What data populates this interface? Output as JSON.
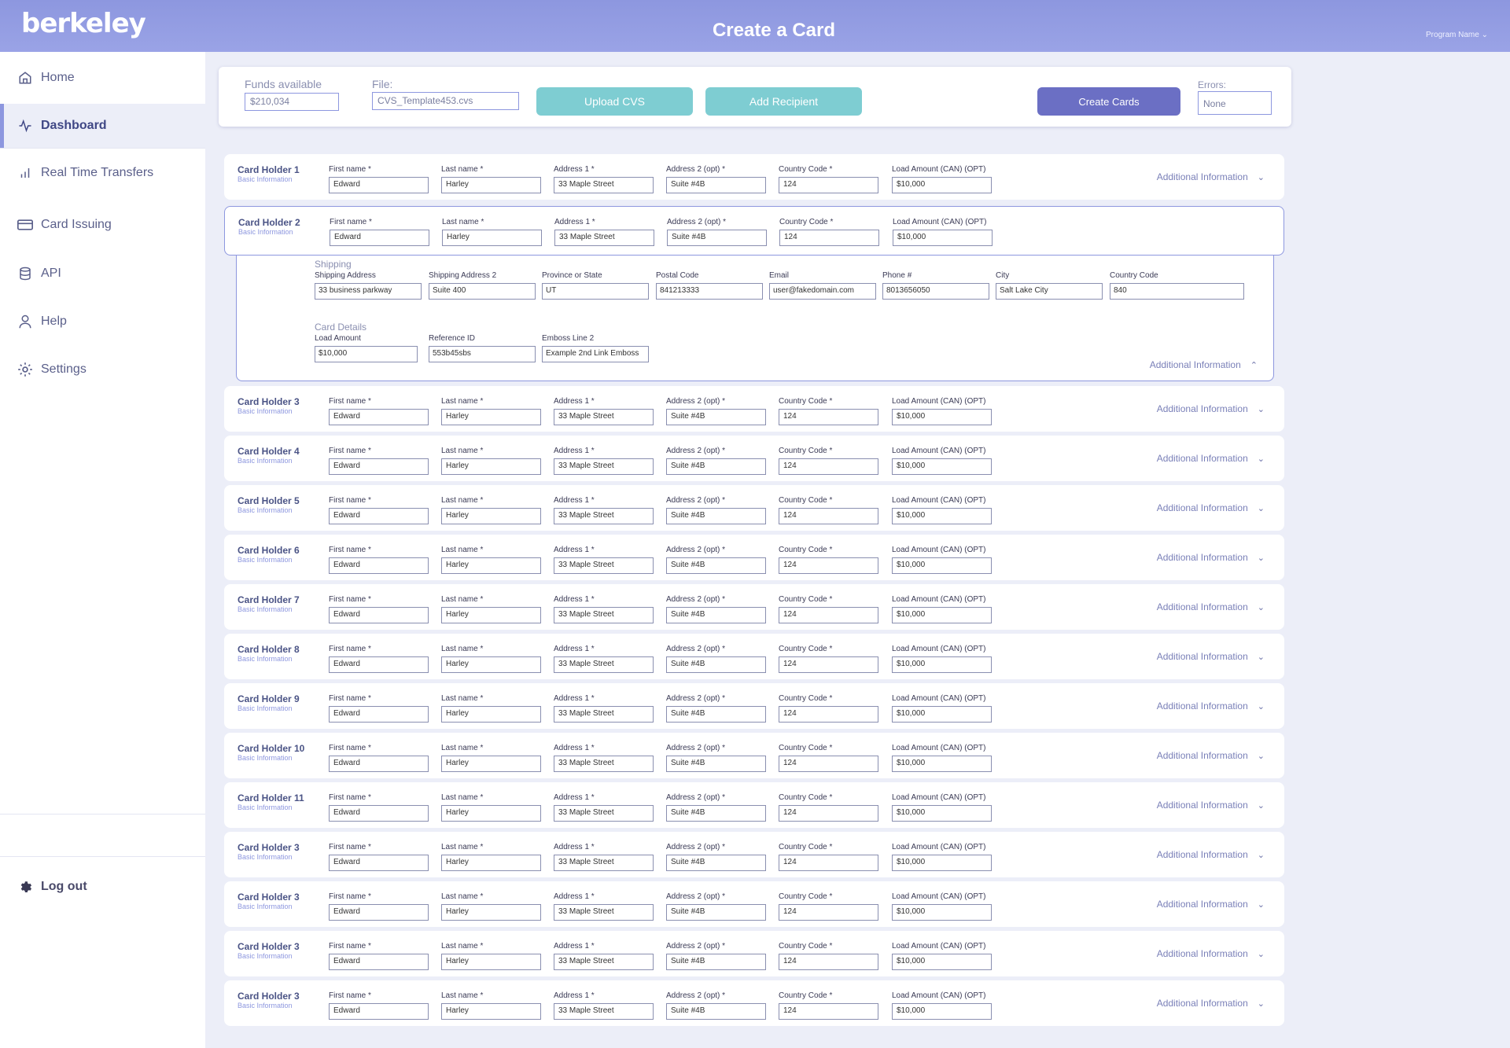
{
  "header": {
    "logo": "berkeley",
    "title": "Create a Card",
    "program": "Program Name"
  },
  "sidebar": {
    "items": [
      {
        "label": "Home",
        "icon": "home-icon"
      },
      {
        "label": "Dashboard",
        "icon": "activity-icon"
      },
      {
        "label": "Real Time Transfers",
        "icon": "bar-chart-icon"
      },
      {
        "label": "Card Issuing",
        "icon": "credit-card-icon"
      },
      {
        "label": "API",
        "icon": "database-icon"
      },
      {
        "label": "Help",
        "icon": "user-icon"
      },
      {
        "label": "Settings",
        "icon": "gear-icon"
      }
    ],
    "logout": "Log out"
  },
  "toolbar": {
    "funds_label": "Funds available",
    "funds_value": "$210,034",
    "file_label": "File:",
    "file_value": "CVS_Template453.cvs",
    "upload_label": "Upload CVS",
    "add_label": "Add Recipient",
    "create_label": "Create Cards",
    "errors_label": "Errors:",
    "errors_value": "None"
  },
  "fields": {
    "first_name": "First name *",
    "last_name": "Last name *",
    "address1": "Address 1 *",
    "address2": "Address 2 (opt) *",
    "country_code": "Country Code *",
    "load_amount": "Load Amount (CAN) (OPT)",
    "basic_info": "Basic Information",
    "additional_info": "Additional Information"
  },
  "values": {
    "first_name": "Edward",
    "last_name": "Harley",
    "address1": "33 Maple Street",
    "address2": "Suite #4B",
    "country_code": "124",
    "load_amount": "$10,000"
  },
  "cards": [
    {
      "title": "Card Holder 1"
    },
    {
      "title": "Card Holder 2"
    },
    {
      "title": "Card Holder 3"
    },
    {
      "title": "Card Holder 4"
    },
    {
      "title": "Card Holder 5"
    },
    {
      "title": "Card Holder 6"
    },
    {
      "title": "Card Holder 7"
    },
    {
      "title": "Card Holder 8"
    },
    {
      "title": "Card Holder 9"
    },
    {
      "title": "Card Holder 10"
    },
    {
      "title": "Card Holder 11"
    },
    {
      "title": "Card Holder 3"
    },
    {
      "title": "Card Holder 3"
    },
    {
      "title": "Card Holder 3"
    },
    {
      "title": "Card Holder 3"
    }
  ],
  "details": {
    "shipping_title": "Shipping",
    "shipping_fields": [
      {
        "label": "Shipping Address",
        "value": "33 business parkway"
      },
      {
        "label": "Shipping Address 2",
        "value": "Suite 400"
      },
      {
        "label": "Province or State",
        "value": "UT"
      },
      {
        "label": "Postal Code",
        "value": "841213333"
      },
      {
        "label": "Email",
        "value": "user@fakedomain.com"
      },
      {
        "label": "Phone #",
        "value": "8013656050"
      },
      {
        "label": "City",
        "value": "Salt Lake City"
      },
      {
        "label": "Country Code",
        "value": "840"
      }
    ],
    "card_title": "Card Details",
    "card_fields": [
      {
        "label": "Load Amount",
        "value": "$10,000"
      },
      {
        "label": "Reference ID",
        "value": "553b45sbs"
      },
      {
        "label": "Emboss Line 2",
        "value": "Example 2nd Link Emboss"
      }
    ],
    "additional_info": "Additional Information"
  },
  "colors": {
    "accent": "#8d97df",
    "teal": "#7ecdd2",
    "purple": "#6b6fc4",
    "background": "#eceef8"
  }
}
